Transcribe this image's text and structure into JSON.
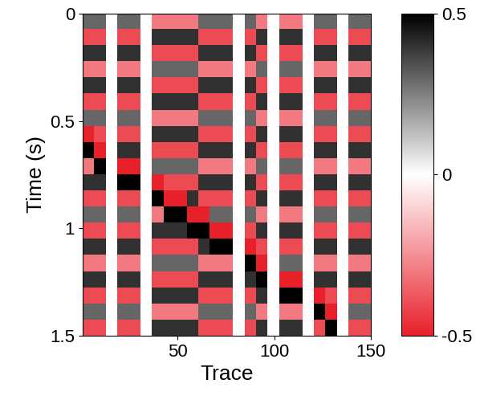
{
  "chart_data": {
    "type": "heatmap",
    "xlabel": "Trace",
    "ylabel": "Time (s)",
    "xlim": [
      1,
      150
    ],
    "xticks": [
      50,
      100,
      150
    ],
    "ylim": [
      1.5,
      0
    ],
    "yticks": [
      0,
      0.5,
      1,
      1.5
    ],
    "colors": [
      "#e8202a",
      "#ffffff",
      "#000000"
    ],
    "colorbar_range": [
      -0.5,
      0.5
    ],
    "colorbar_ticks": [
      -0.5,
      0,
      0.5
    ],
    "cells": [
      [
        0.3,
        0.3,
        0,
        0.3,
        0.3,
        0,
        -0.3,
        -0.3,
        -0.3,
        -0.3,
        0.3,
        0.3,
        0.3,
        0,
        0.3,
        -0.3,
        0,
        -0.3,
        -0.3,
        0,
        0.3,
        0.3,
        0,
        0.3,
        0.3
      ],
      [
        -0.4,
        -0.4,
        0,
        -0.4,
        -0.4,
        0,
        0.4,
        0.4,
        0.4,
        0.4,
        -0.4,
        -0.4,
        -0.4,
        0,
        -0.4,
        0.4,
        0,
        0.4,
        0.4,
        0,
        -0.4,
        -0.4,
        0,
        -0.4,
        -0.4
      ],
      [
        0.4,
        0.4,
        0,
        0.4,
        0.4,
        0,
        -0.4,
        -0.4,
        -0.4,
        -0.4,
        0.4,
        0.4,
        0.4,
        0,
        0.4,
        -0.4,
        0,
        -0.4,
        -0.4,
        0,
        0.4,
        0.4,
        0,
        0.4,
        0.4
      ],
      [
        -0.3,
        -0.3,
        0,
        -0.3,
        -0.3,
        0,
        0.3,
        0.3,
        0.3,
        0.3,
        -0.3,
        -0.3,
        -0.3,
        0,
        -0.3,
        0.3,
        0,
        0.3,
        0.3,
        0,
        -0.3,
        -0.3,
        0,
        -0.3,
        -0.3
      ],
      [
        0.4,
        0.4,
        0,
        0.4,
        0.4,
        0,
        -0.4,
        -0.4,
        -0.4,
        -0.4,
        0.4,
        0.4,
        0.4,
        0,
        0.4,
        -0.4,
        0,
        -0.4,
        -0.4,
        0,
        0.4,
        0.4,
        0,
        0.4,
        0.4
      ],
      [
        -0.4,
        -0.4,
        0,
        -0.4,
        -0.4,
        0,
        0.4,
        0.4,
        0.4,
        0.4,
        -0.4,
        -0.4,
        -0.4,
        0,
        -0.4,
        0.4,
        0,
        0.4,
        0.4,
        0,
        -0.4,
        -0.4,
        0,
        -0.4,
        -0.4
      ],
      [
        0.3,
        0.3,
        0,
        0.3,
        0.3,
        0,
        -0.3,
        -0.3,
        -0.3,
        -0.3,
        0.3,
        0.3,
        0.3,
        0,
        0.3,
        -0.3,
        0,
        -0.3,
        -0.3,
        0,
        0.3,
        0.3,
        0,
        0.3,
        0.3
      ],
      [
        -0.5,
        -0.4,
        0,
        -0.4,
        -0.4,
        0,
        0.4,
        0.4,
        0.4,
        0.4,
        -0.4,
        -0.4,
        -0.4,
        0,
        -0.4,
        0.4,
        0,
        0.4,
        0.4,
        0,
        -0.4,
        -0.4,
        0,
        -0.4,
        -0.4
      ],
      [
        0.5,
        -0.5,
        0,
        0.4,
        0.4,
        0,
        -0.4,
        -0.4,
        -0.4,
        -0.4,
        0.4,
        0.4,
        0.4,
        0,
        0.4,
        -0.4,
        0,
        -0.4,
        -0.4,
        0,
        0.4,
        0.4,
        0,
        0.4,
        0.4
      ],
      [
        -0.3,
        0.5,
        0,
        -0.5,
        -0.5,
        0,
        0.3,
        0.3,
        0.3,
        0.3,
        -0.3,
        -0.3,
        -0.3,
        0,
        -0.3,
        0.3,
        0,
        0.3,
        0.3,
        0,
        -0.3,
        -0.3,
        0,
        -0.3,
        -0.3
      ],
      [
        0.4,
        0.4,
        0,
        0.5,
        0.5,
        0,
        -0.5,
        -0.4,
        -0.4,
        -0.4,
        0.4,
        0.4,
        0.4,
        0,
        0.4,
        -0.4,
        0,
        -0.4,
        -0.4,
        0,
        0.4,
        0.4,
        0,
        0.4,
        0.4
      ],
      [
        -0.4,
        -0.4,
        0,
        -0.4,
        -0.4,
        0,
        0.5,
        -0.5,
        -0.5,
        0.4,
        -0.4,
        -0.4,
        -0.4,
        0,
        -0.4,
        0.4,
        0,
        0.4,
        0.4,
        0,
        -0.4,
        -0.4,
        0,
        -0.4,
        -0.4
      ],
      [
        0.3,
        0.3,
        0,
        0.3,
        0.3,
        0,
        -0.3,
        0.5,
        0.5,
        -0.5,
        -0.5,
        0.3,
        0.3,
        0,
        0.3,
        -0.3,
        0,
        -0.3,
        -0.3,
        0,
        0.3,
        0.3,
        0,
        0.3,
        0.3
      ],
      [
        -0.4,
        -0.4,
        0,
        -0.4,
        -0.4,
        0,
        0.4,
        0.4,
        0.4,
        0.5,
        0.5,
        -0.5,
        -0.5,
        0,
        -0.4,
        0.4,
        0,
        0.4,
        0.4,
        0,
        -0.4,
        -0.4,
        0,
        -0.4,
        -0.4
      ],
      [
        0.4,
        0.4,
        0,
        0.4,
        0.4,
        0,
        -0.4,
        -0.4,
        -0.4,
        -0.4,
        0.4,
        0.5,
        0.5,
        0,
        -0.5,
        -0.4,
        0,
        -0.4,
        -0.4,
        0,
        0.4,
        0.4,
        0,
        0.4,
        0.4
      ],
      [
        -0.3,
        -0.3,
        0,
        -0.3,
        -0.3,
        0,
        0.3,
        0.3,
        0.3,
        0.3,
        -0.3,
        -0.3,
        -0.3,
        0,
        0.5,
        -0.5,
        0,
        0.3,
        0.3,
        0,
        -0.3,
        -0.3,
        0,
        -0.3,
        -0.3
      ],
      [
        0.4,
        0.4,
        0,
        0.4,
        0.4,
        0,
        -0.4,
        -0.4,
        -0.4,
        -0.4,
        0.4,
        0.4,
        0.4,
        0,
        0.4,
        0.5,
        0,
        -0.5,
        -0.5,
        0,
        0.4,
        0.4,
        0,
        0.4,
        0.4
      ],
      [
        -0.4,
        -0.4,
        0,
        -0.4,
        -0.4,
        0,
        0.4,
        0.4,
        0.4,
        0.4,
        -0.4,
        -0.4,
        -0.4,
        0,
        -0.4,
        0.4,
        0,
        0.5,
        0.5,
        0,
        -0.5,
        -0.4,
        0,
        -0.4,
        -0.4
      ],
      [
        0.3,
        0.3,
        0,
        0.3,
        0.3,
        0,
        -0.3,
        -0.3,
        -0.3,
        -0.3,
        0.3,
        0.3,
        0.3,
        0,
        0.3,
        -0.3,
        0,
        -0.3,
        -0.3,
        0,
        0.5,
        -0.5,
        0,
        0.3,
        0.3
      ],
      [
        -0.4,
        -0.4,
        0,
        -0.4,
        -0.4,
        0,
        0.4,
        0.4,
        0.4,
        0.4,
        -0.4,
        -0.4,
        -0.4,
        0,
        -0.4,
        0.4,
        0,
        0.4,
        0.4,
        0,
        -0.4,
        0.5,
        0,
        -0.4,
        -0.4
      ]
    ]
  }
}
